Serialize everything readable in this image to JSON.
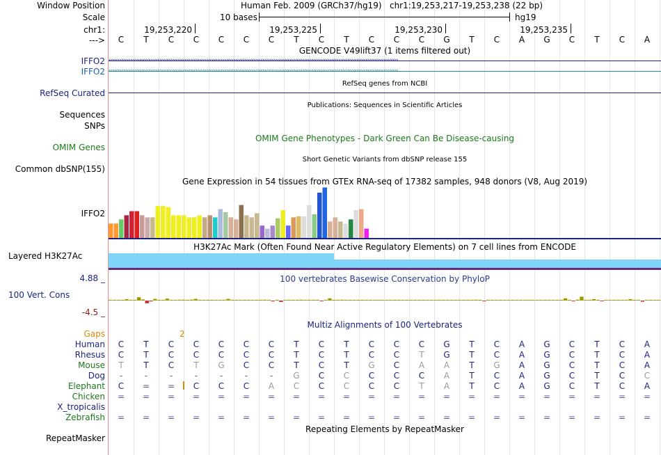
{
  "header": {
    "assembly": "Human Feb. 2009 (GRCh37/hg19)",
    "position": "chr1:19,253,217-19,253,238 (22 bp)",
    "scale_text": "10 bases",
    "scale_db": "hg19"
  },
  "labels": {
    "window_position": "Window Position",
    "scale": "Scale",
    "chr": "chr1:",
    "strand": "--->",
    "iffo2_a": "IFFO2",
    "iffo2_b": "IFFO2",
    "refseq": "RefSeq Curated",
    "sequences": "Sequences",
    "snps": "SNPs",
    "omim": "OMIM Genes",
    "dbsnp": "Common dbSNP(155)",
    "gtex_gene": "IFFO2",
    "h3k27ac": "Layered H3K27Ac",
    "phylop_max": "4.88 _",
    "phylop_name": "100 Vert. Cons",
    "phylop_min": "-4.5 _",
    "gaps": "Gaps",
    "repeatmasker": "RepeatMasker"
  },
  "ruler": {
    "ticks": [
      "19,253,220",
      "19,253,225",
      "19,253,230",
      "19,253,235"
    ]
  },
  "sequence": [
    "C",
    "T",
    "C",
    "C",
    "C",
    "C",
    "C",
    "T",
    "C",
    "T",
    "C",
    "C",
    "C",
    "G",
    "T",
    "C",
    "A",
    "G",
    "C",
    "T",
    "C",
    "A"
  ],
  "tracks": {
    "gencode": "GENCODE V49lift37 (1 items filtered out)",
    "refseq_title": "RefSeq genes from NCBI",
    "publications": "Publications: Sequences in Scientific Articles",
    "omim_title": "OMIM Gene Phenotypes - Dark Green Can Be Disease-causing",
    "dbsnp_title": "Short Genetic Variants from dbSNP release 155",
    "gtex_title": "Gene Expression in 54 tissues from GTEx RNA-seq of 17382 samples, 948 donors (V8, Aug 2019)",
    "h3k27ac_title": "H3K27Ac Mark (Often Found Near Active Regulatory Elements) on 7 cell lines from ENCODE",
    "phylop_title": "100 vertebrates Basewise Conservation by PhyloP",
    "multiz_title": "Multiz Alignments of 100 Vertebrates",
    "repeat_title": "Repeating Elements by RepeatMasker"
  },
  "gtex": {
    "values": [
      0.28,
      0.28,
      0.36,
      0.44,
      0.52,
      0.52,
      0.44,
      0.4,
      0.4,
      0.62,
      0.62,
      0.6,
      0.44,
      0.44,
      0.44,
      0.4,
      0.4,
      0.44,
      0.4,
      0.44,
      0.4,
      0.56,
      0.5,
      0.4,
      0.36,
      0.64,
      0.44,
      0.4,
      0.48,
      0.24,
      0.18,
      0.24,
      0.38,
      0.54,
      0.24,
      0.4,
      0.42,
      0.42,
      0.64,
      0.46,
      0.88,
      0.98,
      0.32,
      0.4,
      0.32,
      0.28,
      0.36,
      0.54,
      0.56,
      0.18
    ],
    "colors": [
      "#ff9933",
      "#ff9933",
      "#66cc66",
      "#aa2244",
      "#cc2233",
      "#dd2222",
      "#cc9999",
      "#ccaaaa",
      "#c8b890",
      "#eeee22",
      "#eeee22",
      "#eeee22",
      "#eeee22",
      "#eeee22",
      "#eeee22",
      "#eeee22",
      "#eeee22",
      "#eeee22",
      "#c6a888",
      "#b89070",
      "#22cccc",
      "#aabbdd",
      "#a6c8a0",
      "#d8b098",
      "#d8b098",
      "#8b7050",
      "#c8b890",
      "#c8b890",
      "#c8b890",
      "#9966cc",
      "#bbbbdd",
      "#aa88cc",
      "#aacc66",
      "#eeee22",
      "#6666ff",
      "#dd9955",
      "#ddbb66",
      "#dddddd",
      "#dddddd",
      "#88cc88",
      "#2255cc",
      "#2266dd",
      "#d8b098",
      "#d8b098",
      "#c8b890",
      "#dddddd",
      "#228844",
      "#dddddd",
      "#eeaa88",
      "#ee22ee"
    ]
  },
  "phylop": {
    "values": [
      0.1,
      0.1,
      0.2,
      0.1,
      0.5,
      0.2,
      0.1,
      1.2,
      0.4,
      -1.0,
      -0.3,
      0.6,
      0.1,
      0.1,
      0.7,
      0.1,
      0.1,
      0.3,
      0.3,
      0.1,
      0.3,
      0.6,
      0.1,
      0.1,
      0.1,
      0.1,
      0.1,
      0.1,
      0.1,
      0.6,
      0.1,
      0.1,
      0.1,
      0.1,
      0.1,
      0.1,
      0.1,
      0.1,
      0.3,
      0.1,
      -0.3,
      0.2,
      -0.5,
      0.1,
      0.1,
      0.2,
      0.1,
      0.3,
      0.1,
      0.2,
      0.2,
      0.1,
      -0.2,
      0.1,
      0.8,
      0.2,
      0.1,
      0.3,
      0.1,
      0.1,
      0.1,
      0.1,
      0.1,
      0.1,
      0.1,
      0.1,
      0.1,
      0.1,
      0.1,
      0.1,
      0.1,
      0.1,
      0.1,
      0.1,
      0.1,
      0.1,
      0.1,
      0.1,
      0.2,
      0.1,
      0.1,
      0.1,
      0.1,
      0.1,
      0.1,
      0.1,
      0.1,
      0.1,
      0.1,
      0.1,
      0.3,
      0.1,
      -0.2,
      0.1,
      0.1,
      0.1,
      0.1,
      0.1,
      0.2,
      0.1,
      0.1,
      0.1,
      0.1,
      0.1,
      0.1,
      0.1,
      0.1,
      0.1,
      0.2,
      0.1,
      0.1,
      0.1,
      0.8,
      0.1,
      -0.2,
      0.3,
      1.4,
      0.1,
      0.1,
      0.5,
      0.1,
      -0.1,
      0.1,
      0.1,
      0.1,
      0.1,
      0.1,
      0.1,
      0.5,
      0.2,
      0.1,
      -0.4,
      0.1,
      0.1,
      0.1,
      0.1
    ],
    "colors_pos": "#9b9b00",
    "colors_neg": "#cc3333"
  },
  "multiz": {
    "gap_label": "2",
    "species": [
      {
        "name": "Human",
        "color": "#1a237e",
        "seq": [
          "C",
          "T",
          "C",
          "C",
          "C",
          "C",
          "C",
          "T",
          "C",
          "T",
          "C",
          "C",
          "C",
          "G",
          "T",
          "C",
          "A",
          "G",
          "C",
          "T",
          "C",
          "A"
        ]
      },
      {
        "name": "Rhesus",
        "color": "#1a237e",
        "seq": [
          "C",
          "T",
          "C",
          "C",
          "C",
          "C",
          "C",
          "T",
          "C",
          "T",
          "C",
          "C",
          "T",
          "G",
          "T",
          "C",
          "A",
          "G",
          "C",
          "T",
          "C",
          "A"
        ]
      },
      {
        "name": "Mouse",
        "color": "#1b7a1b",
        "seq": [
          "T",
          "T",
          "C",
          "T",
          "G",
          "C",
          "C",
          "T",
          "C",
          "T",
          "G",
          "C",
          "A",
          "A",
          "T",
          "G",
          "A",
          "G",
          "C",
          "T",
          "C",
          "A"
        ]
      },
      {
        "name": "Dog",
        "color": "#1a237e",
        "seq": [
          "-",
          "-",
          "-",
          "-",
          "-",
          "-",
          "-",
          "G",
          "C",
          "C",
          "C",
          "C",
          "C",
          "A",
          "T",
          "C",
          "A",
          "G",
          "C",
          "T",
          "C",
          "C"
        ]
      },
      {
        "name": "Elephant",
        "color": "#1b7a1b",
        "seq": [
          "C",
          "=",
          "=",
          "C",
          "C",
          "C",
          "A",
          "C",
          "C",
          "C",
          "C",
          "C",
          "T",
          "A",
          "T",
          "C",
          "A",
          "G",
          "C",
          "T",
          "C",
          "A"
        ]
      },
      {
        "name": "Chicken",
        "color": "#1b7a1b",
        "seq": [
          "=",
          "=",
          "=",
          "=",
          "=",
          "=",
          "=",
          "=",
          "=",
          "=",
          "=",
          "=",
          "=",
          "=",
          "=",
          "=",
          "=",
          "=",
          "=",
          "=",
          "=",
          "="
        ]
      },
      {
        "name": "X_tropicalis",
        "color": "#1a237e",
        "seq": []
      },
      {
        "name": "Zebrafish",
        "color": "#1b7a1b",
        "seq": [
          "=",
          "=",
          "=",
          "=",
          "=",
          "=",
          "=",
          "=",
          "=",
          "=",
          "=",
          "=",
          "=",
          "=",
          "=",
          "=",
          "=",
          "=",
          "=",
          "=",
          "=",
          "="
        ]
      }
    ]
  },
  "colors": {
    "label_navy": "#1a237e",
    "label_blue": "#1e5fa8",
    "omim_green": "#1b7a1b",
    "gaps_orange": "#d98c00",
    "h3k27ac": "#7fd4f8",
    "gtex_axis": "#1a237e"
  }
}
